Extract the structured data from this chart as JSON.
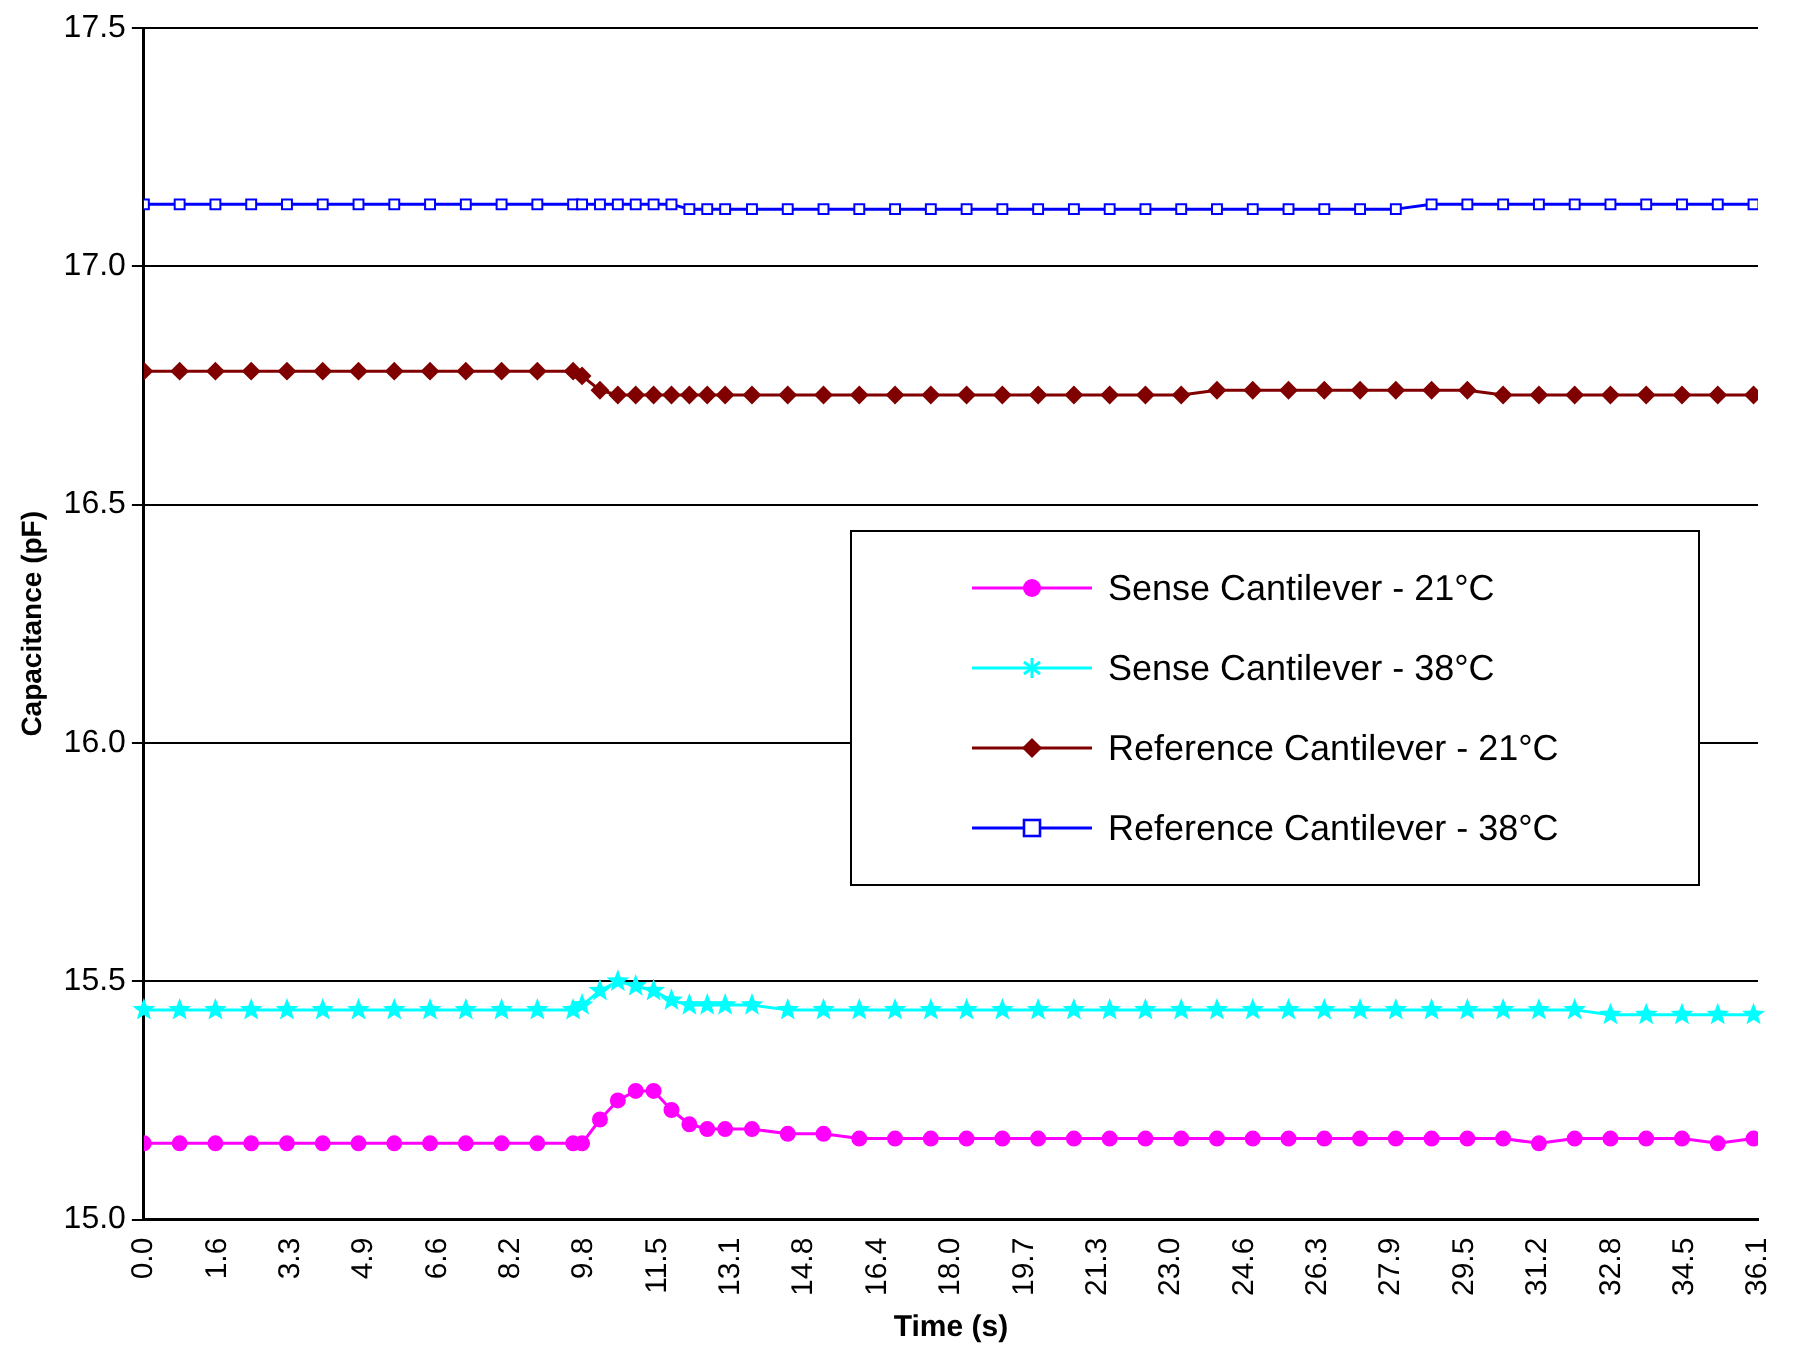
{
  "chart_data": {
    "type": "line",
    "xlabel": "Time (s)",
    "ylabel": "Capacitance (pF)",
    "x": [
      0,
      0.8,
      1.6,
      2.4,
      3.2,
      4.0,
      4.8,
      5.6,
      6.4,
      7.2,
      8.0,
      8.8,
      9.6,
      9.8,
      10.2,
      10.6,
      11.0,
      11.4,
      11.8,
      12.2,
      12.6,
      13.0,
      13.6,
      14.4,
      15.2,
      16.0,
      16.8,
      17.6,
      18.4,
      19.2,
      20.0,
      20.8,
      21.6,
      22.4,
      23.2,
      24.0,
      24.8,
      25.6,
      26.4,
      27.2,
      28.0,
      28.8,
      29.6,
      30.4,
      31.2,
      32.0,
      32.8,
      33.6,
      34.4,
      35.2,
      36.0
    ],
    "series": [
      {
        "name": "Sense Cantilever - 21°C",
        "color": "#ff00ff",
        "marker": "circle",
        "values": [
          15.16,
          15.16,
          15.16,
          15.16,
          15.16,
          15.16,
          15.16,
          15.16,
          15.16,
          15.16,
          15.16,
          15.16,
          15.16,
          15.16,
          15.21,
          15.25,
          15.27,
          15.27,
          15.23,
          15.2,
          15.19,
          15.19,
          15.19,
          15.18,
          15.18,
          15.17,
          15.17,
          15.17,
          15.17,
          15.17,
          15.17,
          15.17,
          15.17,
          15.17,
          15.17,
          15.17,
          15.17,
          15.17,
          15.17,
          15.17,
          15.17,
          15.17,
          15.17,
          15.17,
          15.16,
          15.17,
          15.17,
          15.17,
          15.17,
          15.16,
          15.17
        ]
      },
      {
        "name": "Sense Cantilever - 38°C",
        "color": "#00ffff",
        "marker": "star",
        "values": [
          15.44,
          15.44,
          15.44,
          15.44,
          15.44,
          15.44,
          15.44,
          15.44,
          15.44,
          15.44,
          15.44,
          15.44,
          15.44,
          15.45,
          15.48,
          15.5,
          15.49,
          15.48,
          15.46,
          15.45,
          15.45,
          15.45,
          15.45,
          15.44,
          15.44,
          15.44,
          15.44,
          15.44,
          15.44,
          15.44,
          15.44,
          15.44,
          15.44,
          15.44,
          15.44,
          15.44,
          15.44,
          15.44,
          15.44,
          15.44,
          15.44,
          15.44,
          15.44,
          15.44,
          15.44,
          15.44,
          15.43,
          15.43,
          15.43,
          15.43,
          15.43
        ]
      },
      {
        "name": "Reference Cantilever - 21°C",
        "color": "#800000",
        "marker": "diamond",
        "values": [
          16.78,
          16.78,
          16.78,
          16.78,
          16.78,
          16.78,
          16.78,
          16.78,
          16.78,
          16.78,
          16.78,
          16.78,
          16.78,
          16.77,
          16.74,
          16.73,
          16.73,
          16.73,
          16.73,
          16.73,
          16.73,
          16.73,
          16.73,
          16.73,
          16.73,
          16.73,
          16.73,
          16.73,
          16.73,
          16.73,
          16.73,
          16.73,
          16.73,
          16.73,
          16.73,
          16.74,
          16.74,
          16.74,
          16.74,
          16.74,
          16.74,
          16.74,
          16.74,
          16.73,
          16.73,
          16.73,
          16.73,
          16.73,
          16.73,
          16.73,
          16.73
        ]
      },
      {
        "name": "Reference Cantilever - 38°C",
        "color": "#0000ff",
        "marker": "square",
        "values": [
          17.13,
          17.13,
          17.13,
          17.13,
          17.13,
          17.13,
          17.13,
          17.13,
          17.13,
          17.13,
          17.13,
          17.13,
          17.13,
          17.13,
          17.13,
          17.13,
          17.13,
          17.13,
          17.13,
          17.12,
          17.12,
          17.12,
          17.12,
          17.12,
          17.12,
          17.12,
          17.12,
          17.12,
          17.12,
          17.12,
          17.12,
          17.12,
          17.12,
          17.12,
          17.12,
          17.12,
          17.12,
          17.12,
          17.12,
          17.12,
          17.12,
          17.13,
          17.13,
          17.13,
          17.13,
          17.13,
          17.13,
          17.13,
          17.13,
          17.13,
          17.13
        ]
      }
    ],
    "xlim": [
      0,
      36.1
    ],
    "xticks": [
      {
        "value": 0,
        "label": "0.0"
      },
      {
        "value": 1.641,
        "label": "1.6"
      },
      {
        "value": 3.282,
        "label": "3.3"
      },
      {
        "value": 4.923,
        "label": "4.9"
      },
      {
        "value": 6.564,
        "label": "6.6"
      },
      {
        "value": 8.205,
        "label": "8.2"
      },
      {
        "value": 9.845,
        "label": "9.8"
      },
      {
        "value": 11.486,
        "label": "11.5"
      },
      {
        "value": 13.127,
        "label": "13.1"
      },
      {
        "value": 14.768,
        "label": "14.8"
      },
      {
        "value": 16.409,
        "label": "16.4"
      },
      {
        "value": 18.05,
        "label": "18.0"
      },
      {
        "value": 19.691,
        "label": "19.7"
      },
      {
        "value": 21.332,
        "label": "21.3"
      },
      {
        "value": 22.973,
        "label": "23.0"
      },
      {
        "value": 24.614,
        "label": "24.6"
      },
      {
        "value": 26.255,
        "label": "26.3"
      },
      {
        "value": 27.895,
        "label": "27.9"
      },
      {
        "value": 29.536,
        "label": "29.5"
      },
      {
        "value": 31.177,
        "label": "31.2"
      },
      {
        "value": 32.818,
        "label": "32.8"
      },
      {
        "value": 34.459,
        "label": "34.5"
      },
      {
        "value": 36.1,
        "label": "36.1"
      }
    ],
    "ylim": [
      15.0,
      17.5
    ],
    "yticks": [
      {
        "value": 15,
        "label": "15.0"
      },
      {
        "value": 15.5,
        "label": "15.5"
      },
      {
        "value": 16,
        "label": "16.0"
      },
      {
        "value": 16.5,
        "label": "16.5"
      },
      {
        "value": 17,
        "label": "17.0"
      },
      {
        "value": 17.5,
        "label": "17.5"
      }
    ],
    "grid": "y",
    "legend": "right"
  }
}
